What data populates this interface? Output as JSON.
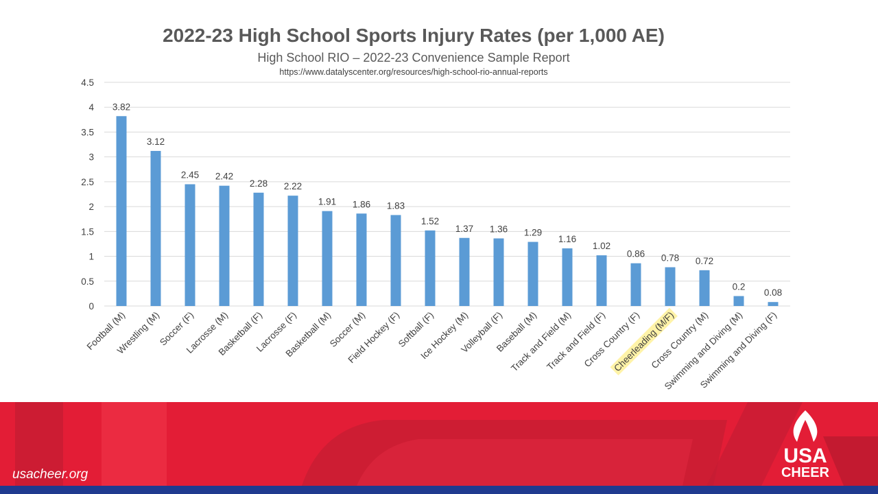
{
  "chart_data": {
    "type": "bar",
    "title": "2022-23 High School Sports Injury Rates (per 1,000 AE)",
    "subtitle": "High School RIO – 2022-23 Convenience Sample Report",
    "source_url": "https://www.datalyscenter.org/resources/high-school-rio-annual-reports",
    "categories": [
      "Football (M)",
      "Wrestling (M)",
      "Soccer (F)",
      "Lacrosse (M)",
      "Basketball (F)",
      "Lacrosse (F)",
      "Basketball (M)",
      "Soccer (M)",
      "Field Hockey (F)",
      "Softball (F)",
      "Ice Hockey (M)",
      "Volleyball (F)",
      "Baseball (M)",
      "Track and Field (M)",
      "Track and Field (F)",
      "Cross Country (F)",
      "Cheerleading (M/F)",
      "Cross Country (M)",
      "Swimming and Diving (M)",
      "Swimming and Diving (F)"
    ],
    "values": [
      3.82,
      3.12,
      2.45,
      2.42,
      2.28,
      2.22,
      1.91,
      1.86,
      1.83,
      1.52,
      1.37,
      1.36,
      1.29,
      1.16,
      1.02,
      0.86,
      0.78,
      0.72,
      0.2,
      0.08
    ],
    "value_labels": [
      "3.82",
      "3.12",
      "2.45",
      "2.42",
      "2.28",
      "2.22",
      "1.91",
      "1.86",
      "1.83",
      "1.52",
      "1.37",
      "1.36",
      "1.29",
      "1.16",
      "1.02",
      "0.86",
      "0.78",
      "0.72",
      "0.2",
      "0.08"
    ],
    "highlighted_category": "Cheerleading (M/F)",
    "y_ticks": [
      "0",
      "0.5",
      "1",
      "1.5",
      "2",
      "2.5",
      "3",
      "3.5",
      "4",
      "4.5"
    ],
    "ylim": [
      0,
      4.5
    ],
    "grid": true,
    "xlabel": "",
    "ylabel": ""
  },
  "footer": {
    "website": "usacheer.org",
    "logo_line1": "USA",
    "logo_line2": "CHEER"
  },
  "colors": {
    "bar": "#5b9bd5",
    "highlight": "#fff3a8",
    "footer_red": "#e31d36",
    "footer_blue": "#1f3a8f"
  }
}
